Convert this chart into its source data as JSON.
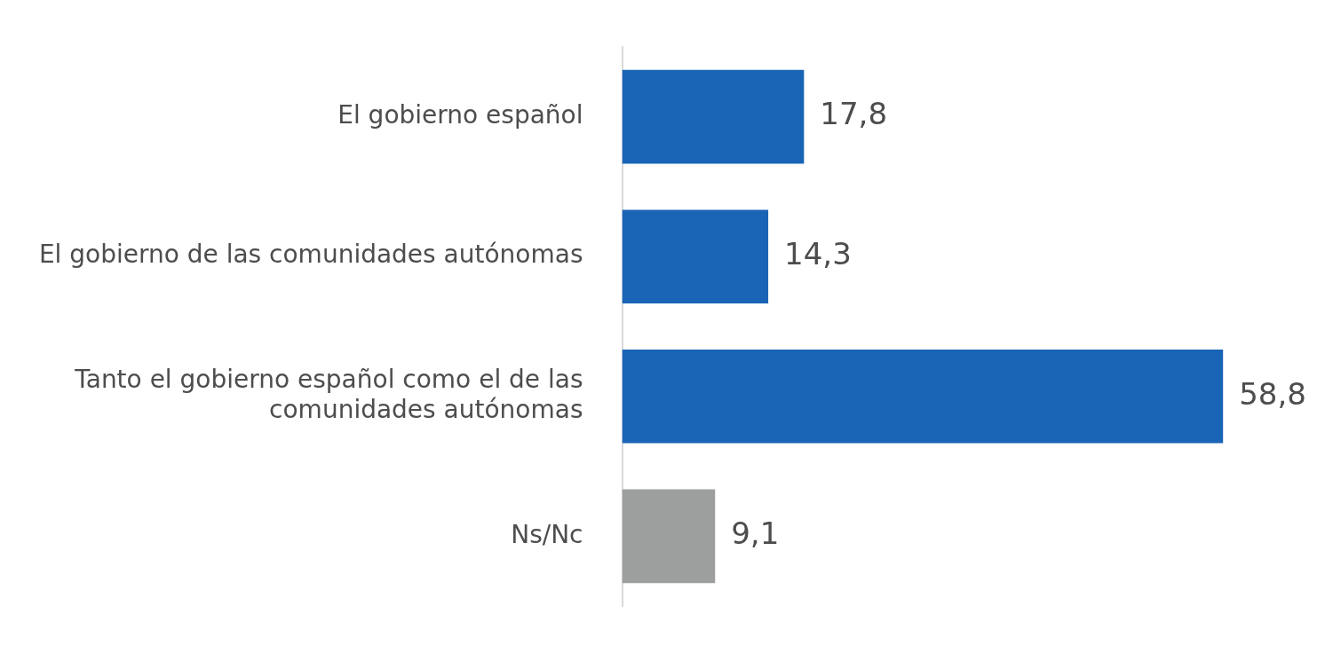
{
  "chart_data": {
    "type": "bar",
    "orientation": "horizontal",
    "categories": [
      "El gobierno español",
      "El gobierno de las comunidades autónomas",
      "Tanto el gobierno español como el de las comunidades autónomas",
      "Ns/Nc"
    ],
    "values": [
      17.8,
      14.3,
      58.8,
      9.1
    ],
    "colors": [
      "#1a64b5",
      "#1a64b5",
      "#1a64b5",
      "#9d9e9e"
    ],
    "value_labels": [
      "17,8",
      "14,3",
      "58,8",
      "9,1"
    ],
    "legend": false,
    "tick_labels": "y"
  }
}
